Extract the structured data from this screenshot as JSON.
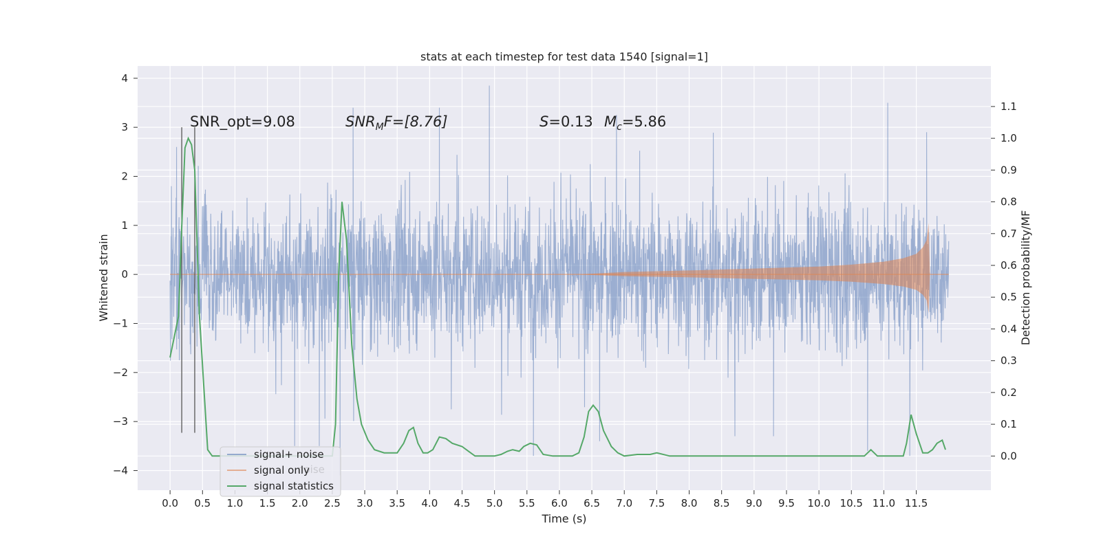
{
  "chart_data": {
    "type": "line",
    "title": "stats at each timestep for test data 1540 [signal=1]",
    "xlabel": "Time (s)",
    "ylabel": "Whitened strain",
    "y2label": "Detection probability/MF",
    "xlim": [
      -0.5,
      12.65
    ],
    "ylim": [
      -4.4,
      4.25
    ],
    "y2lim": [
      -0.1075,
      1.2275
    ],
    "x_ticks": [
      "0.0",
      "0.5",
      "1.0",
      "1.5",
      "2.0",
      "2.5",
      "3.0",
      "3.5",
      "4.0",
      "4.5",
      "5.0",
      "5.5",
      "6.0",
      "6.5",
      "7.0",
      "7.5",
      "8.0",
      "8.5",
      "9.0",
      "9.5",
      "10.0",
      "10.5",
      "11.0",
      "11.5"
    ],
    "y_ticks": [
      "4",
      "3",
      "2",
      "1",
      "0",
      "−1",
      "−2",
      "−3",
      "−4"
    ],
    "y2_ticks": [
      "1.1",
      "1.0",
      "0.9",
      "0.8",
      "0.7",
      "0.6",
      "0.5",
      "0.4",
      "0.3",
      "0.2",
      "0.1",
      "0.0"
    ],
    "grid": true,
    "legend_position": "lower-left",
    "legend": [
      "signal+ noise",
      "signal only",
      "signal statistics"
    ],
    "colors": {
      "noise": "#4c72b0",
      "signal": "#dd8452",
      "stats": "#55a868",
      "plot_bg": "#eaeaf2",
      "grid": "#ffffff",
      "vline": "#555555"
    },
    "annotations": {
      "snr_opt": "SNR_opt=9.08",
      "snr_mf_label": "SNR",
      "snr_mf_sub": "M",
      "snr_mf_rest": "F=[8.76]",
      "s_label": "S",
      "s_value": "=0.13",
      "mc_label": "M",
      "mc_sub": "c",
      "mc_value": "=5.86"
    },
    "noise_series": {
      "name": "signal+ noise",
      "x_range": [
        0.0,
        12.0
      ],
      "typical_amplitude": 1.2,
      "peak_values": [
        {
          "x": 0.02,
          "y": 1.8
        },
        {
          "x": 0.1,
          "y": 2.6
        },
        {
          "x": 2.82,
          "y": 3.4
        },
        {
          "x": 4.15,
          "y": 3.4
        },
        {
          "x": 4.92,
          "y": 3.85
        },
        {
          "x": 6.88,
          "y": 3.25
        },
        {
          "x": 11.06,
          "y": 3.5
        },
        {
          "x": 11.66,
          "y": 2.9
        },
        {
          "x": 2.62,
          "y": -4.1
        },
        {
          "x": 2.3,
          "y": -3.5
        },
        {
          "x": 1.92,
          "y": -3.5
        },
        {
          "x": 5.6,
          "y": -3.7
        },
        {
          "x": 10.75,
          "y": -3.6
        },
        {
          "x": 11.4,
          "y": -3.7
        },
        {
          "x": 9.3,
          "y": -3.3
        },
        {
          "x": 6.62,
          "y": -3.4
        }
      ]
    },
    "signal_series": {
      "name": "signal only",
      "x_range": [
        0.0,
        12.0
      ],
      "envelope": [
        {
          "x": 0.0,
          "y": 0.0
        },
        {
          "x": 6.3,
          "y": 0.0
        },
        {
          "x": 7.0,
          "y": 0.05
        },
        {
          "x": 8.0,
          "y": 0.08
        },
        {
          "x": 9.0,
          "y": 0.12
        },
        {
          "x": 10.0,
          "y": 0.16
        },
        {
          "x": 10.5,
          "y": 0.2
        },
        {
          "x": 11.0,
          "y": 0.26
        },
        {
          "x": 11.3,
          "y": 0.33
        },
        {
          "x": 11.5,
          "y": 0.42
        },
        {
          "x": 11.6,
          "y": 0.55
        },
        {
          "x": 11.66,
          "y": 0.7
        },
        {
          "x": 11.69,
          "y": 1.05
        },
        {
          "x": 11.71,
          "y": 0.0
        },
        {
          "x": 12.0,
          "y": 0.0
        }
      ]
    },
    "stats_series": {
      "name": "signal statistics",
      "x": [
        0.0,
        0.13,
        0.18,
        0.23,
        0.28,
        0.33,
        0.38,
        0.45,
        0.58,
        0.65,
        1.0,
        1.5,
        2.0,
        2.5,
        2.55,
        2.6,
        2.65,
        2.72,
        2.8,
        2.88,
        2.95,
        3.05,
        3.15,
        3.3,
        3.5,
        3.6,
        3.68,
        3.75,
        3.82,
        3.9,
        3.97,
        4.05,
        4.15,
        4.25,
        4.35,
        4.5,
        4.6,
        4.7,
        5.0,
        5.1,
        5.2,
        5.28,
        5.38,
        5.45,
        5.55,
        5.65,
        5.75,
        5.9,
        6.2,
        6.3,
        6.38,
        6.45,
        6.52,
        6.6,
        6.68,
        6.8,
        6.9,
        7.0,
        7.2,
        7.4,
        7.5,
        7.7,
        8.0,
        9.0,
        10.0,
        10.5,
        10.7,
        10.8,
        10.9,
        11.0,
        11.3,
        11.35,
        11.42,
        11.5,
        11.6,
        11.68,
        11.75,
        11.82,
        11.9,
        11.95
      ],
      "y": [
        0.31,
        0.44,
        0.72,
        0.97,
        1.0,
        0.98,
        0.9,
        0.45,
        0.02,
        0.0,
        0.0,
        0.0,
        0.0,
        0.0,
        0.1,
        0.58,
        0.8,
        0.68,
        0.35,
        0.18,
        0.1,
        0.05,
        0.02,
        0.01,
        0.01,
        0.04,
        0.08,
        0.09,
        0.04,
        0.01,
        0.01,
        0.02,
        0.06,
        0.055,
        0.04,
        0.03,
        0.015,
        0.0,
        0.0,
        0.005,
        0.015,
        0.02,
        0.015,
        0.03,
        0.04,
        0.035,
        0.005,
        0.0,
        0.0,
        0.01,
        0.06,
        0.14,
        0.16,
        0.14,
        0.08,
        0.03,
        0.01,
        0.0,
        0.005,
        0.005,
        0.01,
        0.0,
        0.0,
        0.0,
        0.0,
        0.0,
        0.0,
        0.02,
        0.0,
        0.0,
        0.0,
        0.04,
        0.13,
        0.07,
        0.01,
        0.01,
        0.02,
        0.04,
        0.05,
        0.02
      ]
    },
    "vlines": [
      {
        "x": 0.18,
        "y_from": -3.23,
        "y_to": 3.0
      },
      {
        "x": 0.38,
        "y_from": -3.23,
        "y_to": 3.0
      }
    ]
  },
  "legend": {
    "noise_label": "signal+ noise",
    "signal_label": "signal only",
    "stats_label": "signal statistics",
    "hidden_label": "noise"
  }
}
